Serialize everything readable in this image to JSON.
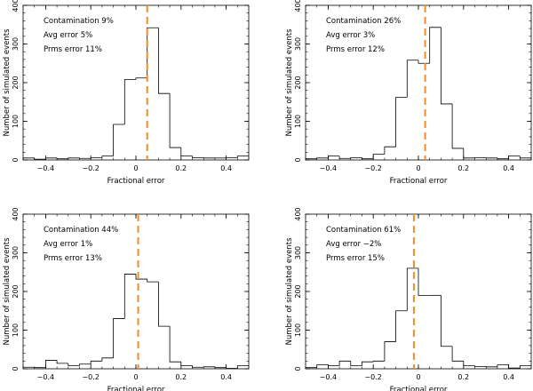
{
  "chart_data": [
    {
      "type": "histogram",
      "xlabel": "Fractional error",
      "ylabel": "Number of simulated events",
      "xlim": [
        -0.5,
        0.5
      ],
      "ylim": [
        0,
        400
      ],
      "xticks": [
        -0.4,
        -0.2,
        0,
        0.2,
        0.4
      ],
      "xtick_labels": [
        "−0.4",
        "−0.2",
        "0",
        "0.2",
        "0.4"
      ],
      "yticks": [
        0,
        100,
        200,
        300,
        400
      ],
      "ytick_labels": [
        "0",
        "100",
        "200",
        "300",
        "400"
      ],
      "bin_edges": [
        -0.5,
        -0.45,
        -0.4,
        -0.35,
        -0.3,
        -0.25,
        -0.2,
        -0.15,
        -0.1,
        -0.05,
        0,
        0.05,
        0.1,
        0.15,
        0.2,
        0.25,
        0.3,
        0.35,
        0.4,
        0.45,
        0.5
      ],
      "counts": [
        5,
        2,
        5,
        3,
        5,
        4,
        6,
        10,
        92,
        208,
        212,
        342,
        172,
        32,
        10,
        6,
        5,
        5,
        6,
        10
      ],
      "marker_x": 0.05,
      "marker_color": "#f28c28",
      "annotations": [
        "Contamination 9%",
        "Avg error 5%",
        "Prms error 11%"
      ]
    },
    {
      "type": "histogram",
      "xlabel": "Fractional error",
      "ylabel": "Number of simulated events",
      "xlim": [
        -0.5,
        0.5
      ],
      "ylim": [
        0,
        400
      ],
      "xticks": [
        -0.4,
        -0.2,
        0,
        0.2,
        0.4
      ],
      "xtick_labels": [
        "−0.4",
        "−0.2",
        "0",
        "0.2",
        "0.4"
      ],
      "yticks": [
        0,
        100,
        200,
        300,
        400
      ],
      "ytick_labels": [
        "0",
        "100",
        "200",
        "300",
        "400"
      ],
      "bin_edges": [
        -0.5,
        -0.45,
        -0.4,
        -0.35,
        -0.3,
        -0.25,
        -0.2,
        -0.15,
        -0.1,
        -0.05,
        0,
        0.05,
        0.1,
        0.15,
        0.2,
        0.25,
        0.3,
        0.35,
        0.4,
        0.45,
        0.5
      ],
      "counts": [
        3,
        5,
        10,
        4,
        6,
        3,
        15,
        34,
        162,
        258,
        250,
        343,
        145,
        30,
        5,
        6,
        5,
        3,
        10,
        5
      ],
      "marker_x": 0.03,
      "marker_color": "#f28c28",
      "annotations": [
        "Contamination 26%",
        "Avg error 3%",
        "Prms error 12%"
      ]
    },
    {
      "type": "histogram",
      "xlabel": "Fractional error",
      "ylabel": "Number of simulated events",
      "xlim": [
        -0.5,
        0.5
      ],
      "ylim": [
        0,
        400
      ],
      "xticks": [
        -0.4,
        -0.2,
        0,
        0.2,
        0.4
      ],
      "xtick_labels": [
        "−0.4",
        "−0.2",
        "0",
        "0.2",
        "0.4"
      ],
      "yticks": [
        0,
        100,
        200,
        300,
        400
      ],
      "ytick_labels": [
        "0",
        "100",
        "200",
        "300",
        "400"
      ],
      "bin_edges": [
        -0.5,
        -0.45,
        -0.4,
        -0.35,
        -0.3,
        -0.25,
        -0.2,
        -0.15,
        -0.1,
        -0.05,
        0,
        0.05,
        0.1,
        0.15,
        0.2,
        0.25,
        0.3,
        0.35,
        0.4,
        0.45,
        0.5
      ],
      "counts": [
        4,
        3,
        22,
        14,
        8,
        12,
        20,
        28,
        130,
        245,
        232,
        225,
        110,
        18,
        8,
        4,
        5,
        3,
        1,
        8
      ],
      "marker_x": 0.01,
      "marker_color": "#f28c28",
      "annotations": [
        "Contamination 44%",
        "Avg error 1%",
        "Prms error 13%"
      ]
    },
    {
      "type": "histogram",
      "xlabel": "Fractional error",
      "ylabel": "Number of simulated events",
      "xlim": [
        -0.5,
        0.5
      ],
      "ylim": [
        0,
        400
      ],
      "xticks": [
        -0.4,
        -0.2,
        0,
        0.2,
        0.4
      ],
      "xtick_labels": [
        "−0.4",
        "−0.2",
        "0",
        "0.2",
        "0.4"
      ],
      "yticks": [
        0,
        100,
        200,
        300,
        400
      ],
      "ytick_labels": [
        "0",
        "100",
        "200",
        "300",
        "400"
      ],
      "bin_edges": [
        -0.5,
        -0.45,
        -0.4,
        -0.35,
        -0.3,
        -0.25,
        -0.2,
        -0.15,
        -0.1,
        -0.05,
        0,
        0.05,
        0.1,
        0.15,
        0.2,
        0.25,
        0.3,
        0.35,
        0.4,
        0.45,
        0.5
      ],
      "counts": [
        3,
        10,
        8,
        20,
        8,
        18,
        20,
        70,
        150,
        260,
        190,
        190,
        58,
        20,
        8,
        6,
        5,
        10,
        2,
        8
      ],
      "marker_x": -0.02,
      "marker_color": "#f28c28",
      "annotations": [
        "Contamination 61%",
        "Avg error −2%",
        "Prms error 15%"
      ]
    }
  ]
}
